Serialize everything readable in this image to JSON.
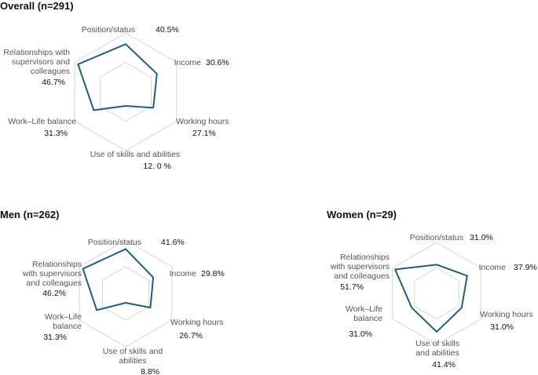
{
  "colors": {
    "series": "#1f5f7a",
    "grid": "#d4d4d4",
    "axis_text": "#555555",
    "value_text": "#111111"
  },
  "chart_data": [
    {
      "type": "radar",
      "title": "Overall (n=291)",
      "axes": [
        {
          "label": [
            "Position/status"
          ],
          "value_label": "40.5%"
        },
        {
          "label": [
            "Income"
          ],
          "value_label": "30.6%"
        },
        {
          "label": [
            "Working hours"
          ],
          "value_label": "27.1%"
        },
        {
          "label": [
            "Use of skills and abilities"
          ],
          "value_label": "12. 0 %"
        },
        {
          "label": [
            "Work–Life balance"
          ],
          "value_label": "31.3%"
        },
        {
          "label": [
            "Relationships with",
            "supervisors and",
            "colleagues"
          ],
          "value_label": "46.7%"
        }
      ],
      "values": [
        40.5,
        30.6,
        27.1,
        12.0,
        31.3,
        46.7
      ],
      "rmax": 50,
      "grid_levels": 2
    },
    {
      "type": "radar",
      "title": "Men (n=262)",
      "axes": [
        {
          "label": [
            "Position/status"
          ],
          "value_label": "41.6%"
        },
        {
          "label": [
            "Income"
          ],
          "value_label": "29.8%"
        },
        {
          "label": [
            "Working hours"
          ],
          "value_label": "26.7%"
        },
        {
          "label": [
            "Use of skills and",
            "abilities"
          ],
          "value_label": "8.8%"
        },
        {
          "label": [
            "Work–Life",
            "balance"
          ],
          "value_label": "31.3%"
        },
        {
          "label": [
            "Relationships",
            "with supervisors",
            "and colleagues"
          ],
          "value_label": "46.2%"
        }
      ],
      "values": [
        41.6,
        29.8,
        26.7,
        8.8,
        31.3,
        46.2
      ],
      "rmax": 50,
      "grid_levels": 2
    },
    {
      "type": "radar",
      "title": "Women (n=29)",
      "axes": [
        {
          "label": [
            "Position/status"
          ],
          "value_label": "31.0%"
        },
        {
          "label": [
            "Income"
          ],
          "value_label": "37.9%"
        },
        {
          "label": [
            "Working hours"
          ],
          "value_label": "31.0%"
        },
        {
          "label": [
            "Use of skills",
            "and abilities"
          ],
          "value_label": "41.4%"
        },
        {
          "label": [
            "Work–Life",
            "balance"
          ],
          "value_label": "31.0%"
        },
        {
          "label": [
            "Relationships",
            "with supervisors",
            "and colleagues"
          ],
          "value_label": "51.7%"
        }
      ],
      "values": [
        31.0,
        37.9,
        31.0,
        41.4,
        31.0,
        51.7
      ],
      "rmax": 55,
      "grid_levels": 2
    }
  ]
}
